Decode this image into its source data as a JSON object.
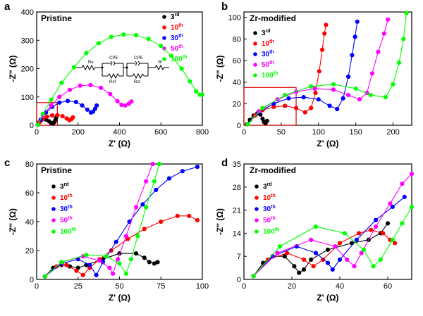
{
  "chart_data": [
    {
      "type": "line",
      "panel_label": "a",
      "title": "Pristine",
      "xlabel": "Z' (Ω)",
      "ylabel": "-Z'' (Ω)",
      "xlim": [
        0,
        800
      ],
      "ylim": [
        0,
        400
      ],
      "xticks": [
        0,
        200,
        400,
        600,
        800
      ],
      "yticks": [
        0,
        100,
        200,
        300,
        400
      ],
      "series": [
        {
          "name": "3rd",
          "color": "#000000",
          "points": [
            [
              5,
              2
            ],
            [
              12,
              10
            ],
            [
              20,
              17
            ],
            [
              30,
              22
            ],
            [
              45,
              20
            ],
            [
              60,
              14
            ],
            [
              70,
              8
            ],
            [
              78,
              6
            ],
            [
              84,
              10
            ],
            [
              90,
              18
            ],
            [
              94,
              26
            ]
          ]
        },
        {
          "name": "10th",
          "color": "#ff0000",
          "points": [
            [
              5,
              2
            ],
            [
              15,
              12
            ],
            [
              30,
              22
            ],
            [
              50,
              30
            ],
            [
              75,
              35
            ],
            [
              100,
              36
            ],
            [
              125,
              32
            ],
            [
              145,
              24
            ],
            [
              158,
              18
            ],
            [
              168,
              22
            ],
            [
              175,
              28
            ]
          ]
        },
        {
          "name": "30th",
          "color": "#0000ff",
          "points": [
            [
              5,
              2
            ],
            [
              20,
              20
            ],
            [
              45,
              45
            ],
            [
              75,
              65
            ],
            [
              110,
              80
            ],
            [
              150,
              86
            ],
            [
              190,
              82
            ],
            [
              220,
              70
            ],
            [
              245,
              55
            ],
            [
              262,
              45
            ],
            [
              272,
              48
            ],
            [
              282,
              58
            ],
            [
              290,
              70
            ]
          ]
        },
        {
          "name": "50th",
          "color": "#ff00ff",
          "points": [
            [
              5,
              2
            ],
            [
              30,
              35
            ],
            [
              70,
              70
            ],
            [
              110,
              100
            ],
            [
              160,
              125
            ],
            [
              210,
              140
            ],
            [
              260,
              142
            ],
            [
              310,
              132
            ],
            [
              355,
              110
            ],
            [
              390,
              85
            ],
            [
              410,
              72
            ],
            [
              428,
              70
            ],
            [
              445,
              76
            ],
            [
              458,
              84
            ]
          ]
        },
        {
          "name": "100th",
          "color": "#00ff00",
          "points": [
            [
              5,
              2
            ],
            [
              30,
              40
            ],
            [
              70,
              90
            ],
            [
              120,
              150
            ],
            [
              180,
              205
            ],
            [
              240,
              255
            ],
            [
              300,
              290
            ],
            [
              360,
              312
            ],
            [
              420,
              320
            ],
            [
              480,
              318
            ],
            [
              540,
              305
            ],
            [
              600,
              280
            ],
            [
              650,
              245
            ],
            [
              700,
              200
            ],
            [
              740,
              155
            ],
            [
              770,
              120
            ],
            [
              788,
              108
            ],
            [
              800,
              108
            ]
          ]
        }
      ],
      "inset_circuit": {
        "labels": [
          "Re",
          "CPE",
          "Rsf",
          "CPE",
          "Rct",
          "W"
        ]
      }
    },
    {
      "type": "line",
      "panel_label": "b",
      "title": "Zr-modified",
      "xlabel": "Z' (Ω)",
      "ylabel": "-Z'' (Ω)",
      "xlim": [
        0,
        225
      ],
      "ylim": [
        0,
        105
      ],
      "xticks": [
        0,
        50,
        100,
        150,
        200
      ],
      "yticks": [
        0,
        20,
        40,
        60,
        80,
        100
      ],
      "series": [
        {
          "name": "3rd",
          "color": "#000000",
          "points": [
            [
              4,
              1
            ],
            [
              8,
              5
            ],
            [
              13,
              9
            ],
            [
              18,
              11
            ],
            [
              22,
              10
            ],
            [
              25,
              6
            ],
            [
              27,
              3
            ],
            [
              29,
              2
            ],
            [
              31,
              4
            ]
          ]
        },
        {
          "name": "10th",
          "color": "#ff0000",
          "points": [
            [
              5,
              1
            ],
            [
              15,
              9
            ],
            [
              25,
              14
            ],
            [
              40,
              17
            ],
            [
              55,
              18
            ],
            [
              70,
              16
            ],
            [
              82,
              12
            ],
            [
              90,
              16
            ],
            [
              96,
              30
            ],
            [
              101,
              50
            ],
            [
              105,
              70
            ],
            [
              108,
              85
            ],
            [
              110,
              93
            ]
          ]
        },
        {
          "name": "30th",
          "color": "#0000ff",
          "points": [
            [
              5,
              1
            ],
            [
              20,
              12
            ],
            [
              40,
              20
            ],
            [
              60,
              25
            ],
            [
              80,
              26
            ],
            [
              100,
              24
            ],
            [
              115,
              18
            ],
            [
              125,
              15
            ],
            [
              133,
              25
            ],
            [
              140,
              45
            ],
            [
              145,
              65
            ],
            [
              149,
              82
            ],
            [
              152,
              96
            ]
          ]
        },
        {
          "name": "50th",
          "color": "#ff00ff",
          "points": [
            [
              5,
              1
            ],
            [
              20,
              13
            ],
            [
              45,
              24
            ],
            [
              70,
              31
            ],
            [
              95,
              34
            ],
            [
              120,
              33
            ],
            [
              140,
              28
            ],
            [
              155,
              24
            ],
            [
              165,
              30
            ],
            [
              172,
              48
            ],
            [
              180,
              68
            ],
            [
              188,
              85
            ],
            [
              193,
              98
            ]
          ]
        },
        {
          "name": "100th",
          "color": "#00ff00",
          "points": [
            [
              5,
              1
            ],
            [
              25,
              16
            ],
            [
              55,
              28
            ],
            [
              90,
              36
            ],
            [
              120,
              38
            ],
            [
              150,
              34
            ],
            [
              170,
              28
            ],
            [
              190,
              26
            ],
            [
              200,
              38
            ],
            [
              208,
              58
            ],
            [
              214,
              80
            ],
            [
              218,
              104
            ]
          ]
        }
      ]
    },
    {
      "type": "line",
      "panel_label": "c",
      "title": "Pristine",
      "xlabel": "Z' (Ω)",
      "ylabel": "-Z'' (Ω)",
      "xlim": [
        0,
        100
      ],
      "ylim": [
        0,
        80
      ],
      "xticks": [
        0,
        25,
        50,
        75,
        100
      ],
      "yticks": [
        0,
        20,
        40,
        60,
        80
      ],
      "series": [
        {
          "name": "3rd",
          "color": "#000000",
          "points": [
            [
              5,
              2
            ],
            [
              10,
              8
            ],
            [
              15,
              10
            ],
            [
              20,
              9
            ],
            [
              25,
              8
            ],
            [
              30,
              10
            ],
            [
              40,
              14
            ],
            [
              50,
              18
            ],
            [
              60,
              18
            ],
            [
              65,
              15
            ],
            [
              68,
              12
            ],
            [
              71,
              11
            ],
            [
              73,
              12
            ]
          ]
        },
        {
          "name": "10th",
          "color": "#ff0000",
          "points": [
            [
              5,
              2
            ],
            [
              12,
              9
            ],
            [
              18,
              10
            ],
            [
              24,
              6
            ],
            [
              28,
              3
            ],
            [
              32,
              8
            ],
            [
              38,
              14
            ],
            [
              45,
              20
            ],
            [
              55,
              28
            ],
            [
              65,
              35
            ],
            [
              75,
              40
            ],
            [
              85,
              44
            ],
            [
              92,
              44
            ],
            [
              97,
              41
            ]
          ]
        },
        {
          "name": "30th",
          "color": "#0000ff",
          "points": [
            [
              5,
              2
            ],
            [
              15,
              11
            ],
            [
              25,
              14
            ],
            [
              32,
              10
            ],
            [
              36,
              3
            ],
            [
              40,
              12
            ],
            [
              48,
              26
            ],
            [
              56,
              40
            ],
            [
              64,
              52
            ],
            [
              72,
              62
            ],
            [
              80,
              70
            ],
            [
              88,
              75
            ],
            [
              97,
              78
            ]
          ]
        },
        {
          "name": "50th",
          "color": "#ff00ff",
          "points": [
            [
              5,
              2
            ],
            [
              15,
              12
            ],
            [
              28,
              16
            ],
            [
              38,
              13
            ],
            [
              44,
              8
            ],
            [
              46,
              4
            ],
            [
              49,
              14
            ],
            [
              54,
              30
            ],
            [
              60,
              50
            ],
            [
              66,
              68
            ],
            [
              70,
              80
            ]
          ]
        },
        {
          "name": "100th",
          "color": "#00ff00",
          "points": [
            [
              5,
              2
            ],
            [
              15,
              12
            ],
            [
              30,
              17
            ],
            [
              42,
              16
            ],
            [
              50,
              11
            ],
            [
              54,
              4
            ],
            [
              57,
              14
            ],
            [
              61,
              30
            ],
            [
              66,
              50
            ],
            [
              71,
              68
            ],
            [
              74,
              80
            ]
          ]
        }
      ]
    },
    {
      "type": "line",
      "panel_label": "d",
      "title": "Zr-modified",
      "xlabel": "Z' (Ω)",
      "ylabel": "-Z'' (Ω)",
      "xlim": [
        0,
        70
      ],
      "ylim": [
        0,
        35
      ],
      "xticks": [
        0,
        20,
        40,
        60
      ],
      "yticks": [
        0,
        7,
        14,
        21,
        28,
        35
      ],
      "series": [
        {
          "name": "3rd",
          "color": "#000000",
          "points": [
            [
              4,
              1
            ],
            [
              8,
              5
            ],
            [
              12,
              7
            ],
            [
              17,
              7
            ],
            [
              21,
              4
            ],
            [
              23,
              2
            ],
            [
              25,
              3
            ],
            [
              28,
              6
            ],
            [
              35,
              9
            ],
            [
              45,
              11
            ],
            [
              52,
              12
            ],
            [
              57,
              14
            ],
            [
              60,
              17
            ]
          ]
        },
        {
          "name": "10th",
          "color": "#ff0000",
          "points": [
            [
              4,
              1
            ],
            [
              10,
              6
            ],
            [
              18,
              8
            ],
            [
              25,
              6
            ],
            [
              29,
              4
            ],
            [
              33,
              6
            ],
            [
              40,
              11
            ],
            [
              48,
              14
            ],
            [
              53,
              15
            ],
            [
              58,
              14
            ],
            [
              61,
              12
            ],
            [
              63,
              11
            ]
          ]
        },
        {
          "name": "30th",
          "color": "#0000ff",
          "points": [
            [
              4,
              1
            ],
            [
              12,
              7
            ],
            [
              22,
              10
            ],
            [
              30,
              8
            ],
            [
              35,
              5
            ],
            [
              37,
              3
            ],
            [
              40,
              6
            ],
            [
              47,
              12
            ],
            [
              55,
              18
            ],
            [
              62,
              22
            ],
            [
              67,
              25
            ]
          ]
        },
        {
          "name": "50th",
          "color": "#ff00ff",
          "points": [
            [
              4,
              1
            ],
            [
              14,
              8
            ],
            [
              28,
              12
            ],
            [
              38,
              10
            ],
            [
              43,
              6
            ],
            [
              46,
              4
            ],
            [
              49,
              8
            ],
            [
              55,
              16
            ],
            [
              61,
              23
            ],
            [
              66,
              29
            ],
            [
              70,
              32
            ]
          ]
        },
        {
          "name": "100th",
          "color": "#00ff00",
          "points": [
            [
              4,
              1
            ],
            [
              15,
              10
            ],
            [
              30,
              16
            ],
            [
              42,
              14
            ],
            [
              50,
              9
            ],
            [
              54,
              4
            ],
            [
              57,
              6
            ],
            [
              62,
              12
            ],
            [
              66,
              17
            ],
            [
              70,
              22
            ]
          ]
        }
      ]
    }
  ]
}
